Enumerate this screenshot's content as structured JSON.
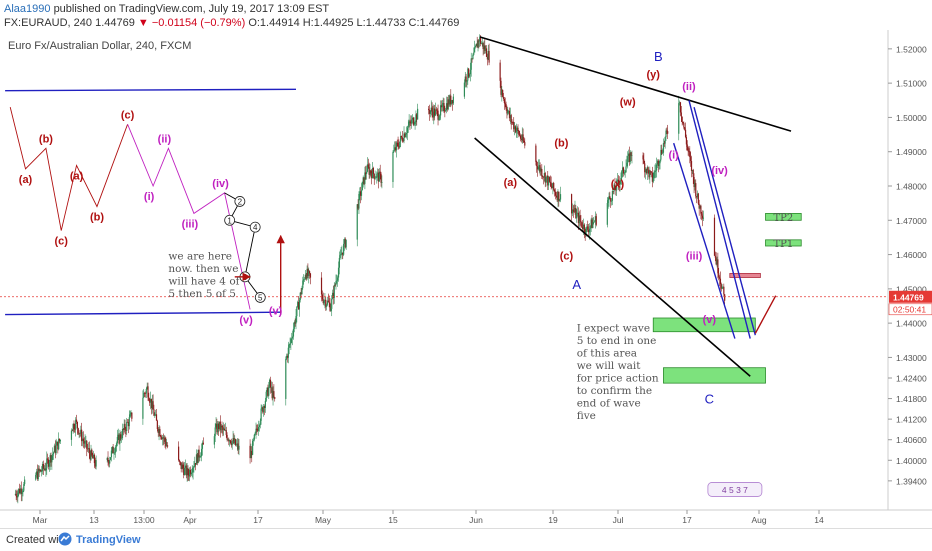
{
  "header": {
    "author": "Alaa1990",
    "published": "published on TradingView.com, July 19, 2017 13:09 EST",
    "symbol": "FX:EURAUD, 240",
    "price": "1.44769",
    "arrow": "▼",
    "change": "−0.01154 (−0.79%)",
    "ohlc": "O:1.44914 H:1.44925 L:1.44733 C:1.44769"
  },
  "overlay_title": "Euro Fx/Australian Dollar, 240, FXCM",
  "footer": {
    "created": "Created with",
    "brand": "TradingView"
  },
  "colors": {
    "up": "#2e8b57",
    "down": "#8b1a1a",
    "line_black": "#000000",
    "line_blue": "#2020c0",
    "zone_green": "#66dd66",
    "zone_red": "#e07080",
    "wave_red": "#b01010",
    "wave_magenta": "#c020c0",
    "price_tag": "#e53935"
  },
  "chart_data": {
    "type": "candlestick",
    "price_axis": {
      "ticks": [
        "1.52000",
        "1.51000",
        "1.50000",
        "1.49000",
        "1.48000",
        "1.47000",
        "1.46000",
        "1.45000",
        "1.44000",
        "1.43000",
        "1.42400",
        "1.41800",
        "1.41200",
        "1.40600",
        "1.40000",
        "1.39400"
      ],
      "last_price": "1.44769",
      "countdown": "02:50:41"
    },
    "time_axis": {
      "ticks": [
        "Mar",
        "13",
        "13:00",
        "Apr",
        "17",
        "May",
        "15",
        "Jun",
        "19",
        "Jul",
        "17",
        "Aug",
        "14"
      ]
    },
    "price_path": [
      {
        "d": "2017-03-02",
        "p": 1.39
      },
      {
        "d": "2017-03-05",
        "p": 1.394
      },
      {
        "d": "2017-03-08",
        "p": 1.398
      },
      {
        "d": "2017-03-11",
        "p": 1.406
      },
      {
        "d": "2017-03-14",
        "p": 1.411
      },
      {
        "d": "2017-03-16",
        "p": 1.404
      },
      {
        "d": "2017-03-19",
        "p": 1.396
      },
      {
        "d": "2017-03-22",
        "p": 1.405
      },
      {
        "d": "2017-03-25",
        "p": 1.413
      },
      {
        "d": "2017-03-28",
        "p": 1.421
      },
      {
        "d": "2017-03-30",
        "p": 1.41
      },
      {
        "d": "2017-04-02",
        "p": 1.401
      },
      {
        "d": "2017-04-05",
        "p": 1.396
      },
      {
        "d": "2017-04-08",
        "p": 1.404
      },
      {
        "d": "2017-04-11",
        "p": 1.41
      },
      {
        "d": "2017-04-14",
        "p": 1.405
      },
      {
        "d": "2017-04-17",
        "p": 1.4
      },
      {
        "d": "2017-04-19",
        "p": 1.412
      },
      {
        "d": "2017-04-21",
        "p": 1.422
      },
      {
        "d": "2017-04-22",
        "p": 1.417
      },
      {
        "d": "2017-04-25",
        "p": 1.434
      },
      {
        "d": "2017-04-28",
        "p": 1.455
      },
      {
        "d": "2017-05-01",
        "p": 1.448
      },
      {
        "d": "2017-05-03",
        "p": 1.445
      },
      {
        "d": "2017-05-05",
        "p": 1.46
      },
      {
        "d": "2017-05-08",
        "p": 1.473
      },
      {
        "d": "2017-05-10",
        "p": 1.485
      },
      {
        "d": "2017-05-13",
        "p": 1.482
      },
      {
        "d": "2017-05-15",
        "p": 1.489
      },
      {
        "d": "2017-05-18",
        "p": 1.497
      },
      {
        "d": "2017-05-21",
        "p": 1.503
      },
      {
        "d": "2017-05-24",
        "p": 1.501
      },
      {
        "d": "2017-05-27",
        "p": 1.506
      },
      {
        "d": "2017-05-30",
        "p": 1.513
      },
      {
        "d": "2017-06-01",
        "p": 1.523
      },
      {
        "d": "2017-06-04",
        "p": 1.515
      },
      {
        "d": "2017-06-07",
        "p": 1.5
      },
      {
        "d": "2017-06-10",
        "p": 1.492
      },
      {
        "d": "2017-06-13",
        "p": 1.485
      },
      {
        "d": "2017-06-16",
        "p": 1.478
      },
      {
        "d": "2017-06-19",
        "p": 1.474
      },
      {
        "d": "2017-06-22",
        "p": 1.467
      },
      {
        "d": "2017-06-25",
        "p": 1.472
      },
      {
        "d": "2017-06-28",
        "p": 1.48
      },
      {
        "d": "2017-07-01",
        "p": 1.49
      },
      {
        "d": "2017-07-03",
        "p": 1.487
      },
      {
        "d": "2017-07-05",
        "p": 1.482
      },
      {
        "d": "2017-07-08",
        "p": 1.496
      },
      {
        "d": "2017-07-10",
        "p": 1.507
      },
      {
        "d": "2017-07-12",
        "p": 1.49
      },
      {
        "d": "2017-07-14",
        "p": 1.475
      },
      {
        "d": "2017-07-16",
        "p": 1.468
      },
      {
        "d": "2017-07-18",
        "p": 1.455
      },
      {
        "d": "2017-07-19",
        "p": 1.4477
      }
    ],
    "trendlines": [
      {
        "color": "black",
        "from": {
          "d": "2017-06-01",
          "p": 1.5235
        },
        "to": {
          "d": "2017-08-01",
          "p": 1.496
        }
      },
      {
        "color": "black",
        "from": {
          "d": "2017-05-31",
          "p": 1.494
        },
        "to": {
          "d": "2017-07-24",
          "p": 1.4245
        }
      },
      {
        "color": "blue",
        "from": {
          "d": "2017-02-28",
          "p": 1.5078
        },
        "to": {
          "d": "2017-04-26",
          "p": 1.5082
        }
      },
      {
        "color": "blue",
        "from": {
          "d": "2017-02-28",
          "p": 1.4425
        },
        "to": {
          "d": "2017-04-23",
          "p": 1.4432
        }
      },
      {
        "color": "blue",
        "from": {
          "d": "2017-07-12",
          "p": 1.505
        },
        "to": {
          "d": "2017-07-24",
          "p": 1.4355
        }
      },
      {
        "color": "blue",
        "from": {
          "d": "2017-07-09",
          "p": 1.4925
        },
        "to": {
          "d": "2017-07-21",
          "p": 1.4355
        }
      },
      {
        "color": "blue",
        "from": {
          "d": "2017-07-13",
          "p": 1.503
        },
        "to": {
          "d": "2017-07-25",
          "p": 1.4365
        }
      },
      {
        "color": "red",
        "from": {
          "d": "2017-07-25",
          "p": 1.437
        },
        "to": {
          "d": "2017-07-29",
          "p": 1.448
        }
      }
    ],
    "zones": [
      {
        "name": "TP2",
        "fill": "green",
        "label": "TP2",
        "from": {
          "d": "2017-07-27",
          "p": 1.472
        },
        "to": {
          "d": "2017-08-03",
          "p": 1.47
        }
      },
      {
        "name": "TP1",
        "fill": "green",
        "label": "TP1",
        "from": {
          "d": "2017-07-27",
          "p": 1.4643
        },
        "to": {
          "d": "2017-08-03",
          "p": 1.4625
        }
      },
      {
        "name": "zone-a",
        "fill": "green",
        "label": "",
        "from": {
          "d": "2017-07-05",
          "p": 1.4415
        },
        "to": {
          "d": "2017-07-25",
          "p": 1.4375
        }
      },
      {
        "name": "zone-b",
        "fill": "green",
        "label": "",
        "from": {
          "d": "2017-07-07",
          "p": 1.427
        },
        "to": {
          "d": "2017-07-27",
          "p": 1.4225
        }
      },
      {
        "name": "resistance",
        "fill": "red",
        "label": "",
        "from": {
          "d": "2017-07-20",
          "p": 1.4545
        },
        "to": {
          "d": "2017-07-26",
          "p": 1.4533
        }
      }
    ],
    "wave_labels": [
      {
        "t": "(y)",
        "c": "red",
        "d": "2017-07-05",
        "p": 1.5115
      },
      {
        "t": "B",
        "c": "blue",
        "d": "2017-07-06",
        "p": 1.5165
      },
      {
        "t": "(ii)",
        "c": "magenta",
        "d": "2017-07-12",
        "p": 1.508
      },
      {
        "t": "(w)",
        "c": "red",
        "d": "2017-06-30",
        "p": 1.5035
      },
      {
        "t": "(b)",
        "c": "red",
        "d": "2017-06-17",
        "p": 1.4915
      },
      {
        "t": "(a)",
        "c": "red",
        "d": "2017-06-07",
        "p": 1.48
      },
      {
        "t": "(c)",
        "c": "red",
        "d": "2017-06-18",
        "p": 1.4585
      },
      {
        "t": "(x)",
        "c": "red",
        "d": "2017-06-28",
        "p": 1.4795
      },
      {
        "t": "A",
        "c": "blue",
        "d": "2017-06-20",
        "p": 1.45
      },
      {
        "t": "(i)",
        "c": "magenta",
        "d": "2017-07-09",
        "p": 1.488
      },
      {
        "t": "(iv)",
        "c": "magenta",
        "d": "2017-07-18",
        "p": 1.4835
      },
      {
        "t": "(iii)",
        "c": "magenta",
        "d": "2017-07-13",
        "p": 1.4585
      },
      {
        "t": "(v)",
        "c": "magenta",
        "d": "2017-07-16",
        "p": 1.44
      },
      {
        "t": "C",
        "c": "blue",
        "d": "2017-07-16",
        "p": 1.4165
      },
      {
        "t": "(v)",
        "c": "magenta",
        "d": "2017-04-22",
        "p": 1.4425
      }
    ],
    "annotations": [
      {
        "name": "we-are-here-note",
        "lines": [
          "we are here",
          "now. then we",
          "will have 4 of",
          "5 then 5 of 5"
        ],
        "d": "2017-04-01",
        "p": 1.4585
      },
      {
        "name": "expect-note",
        "lines": [
          "I expect wave",
          "5 to end in one",
          "of this area",
          "",
          "we will wait",
          "for price action",
          "to confirm the",
          "end of wave",
          "five"
        ],
        "d": "2017-06-20",
        "p": 1.4375
      }
    ],
    "schematic_red": {
      "color": "red",
      "points": [
        {
          "d": "2017-03-01",
          "p": 1.503,
          "l": ""
        },
        {
          "d": "2017-03-04",
          "p": 1.485,
          "l": "(a)"
        },
        {
          "d": "2017-03-08",
          "p": 1.491,
          "l": "(b)"
        },
        {
          "d": "2017-03-11",
          "p": 1.467,
          "l": "(c)"
        },
        {
          "d": "2017-03-14",
          "p": 1.486,
          "l": "(a)"
        },
        {
          "d": "2017-03-18",
          "p": 1.474,
          "l": "(b)"
        },
        {
          "d": "2017-03-24",
          "p": 1.498,
          "l": "(c)"
        }
      ]
    },
    "schematic_magenta": {
      "color": "magenta",
      "points": [
        {
          "d": "2017-03-24",
          "p": 1.498,
          "l": ""
        },
        {
          "d": "2017-03-29",
          "p": 1.48,
          "l": "(i)"
        },
        {
          "d": "2017-04-01",
          "p": 1.491,
          "l": "(ii)"
        },
        {
          "d": "2017-04-06",
          "p": 1.472,
          "l": "(iii)"
        },
        {
          "d": "2017-04-12",
          "p": 1.478,
          "l": "(iv)"
        },
        {
          "d": "2017-04-17",
          "p": 1.444,
          "l": "(v)"
        }
      ]
    },
    "schematic_circled": {
      "color": "black",
      "points": [
        {
          "d": "2017-04-12",
          "p": 1.478,
          "l": ""
        },
        {
          "d": "2017-04-15",
          "p": 1.4755,
          "l": "2"
        },
        {
          "d": "2017-04-13",
          "p": 1.47,
          "l": "1"
        },
        {
          "d": "2017-04-18",
          "p": 1.468,
          "l": "4"
        },
        {
          "d": "2017-04-16",
          "p": 1.4535,
          "l": "3"
        },
        {
          "d": "2017-04-19",
          "p": 1.4475,
          "l": "5"
        }
      ]
    },
    "arrows": [
      {
        "color": "red",
        "from": {
          "d": "2017-04-14",
          "p": 1.4535
        },
        "to": {
          "d": "2017-04-17",
          "p": 1.4535
        }
      },
      {
        "color": "red",
        "from": {
          "d": "2017-04-23",
          "p": 1.4425
        },
        "to": {
          "d": "2017-04-23",
          "p": 1.4655
        }
      }
    ],
    "counter_badge": "4 5 3 7"
  }
}
